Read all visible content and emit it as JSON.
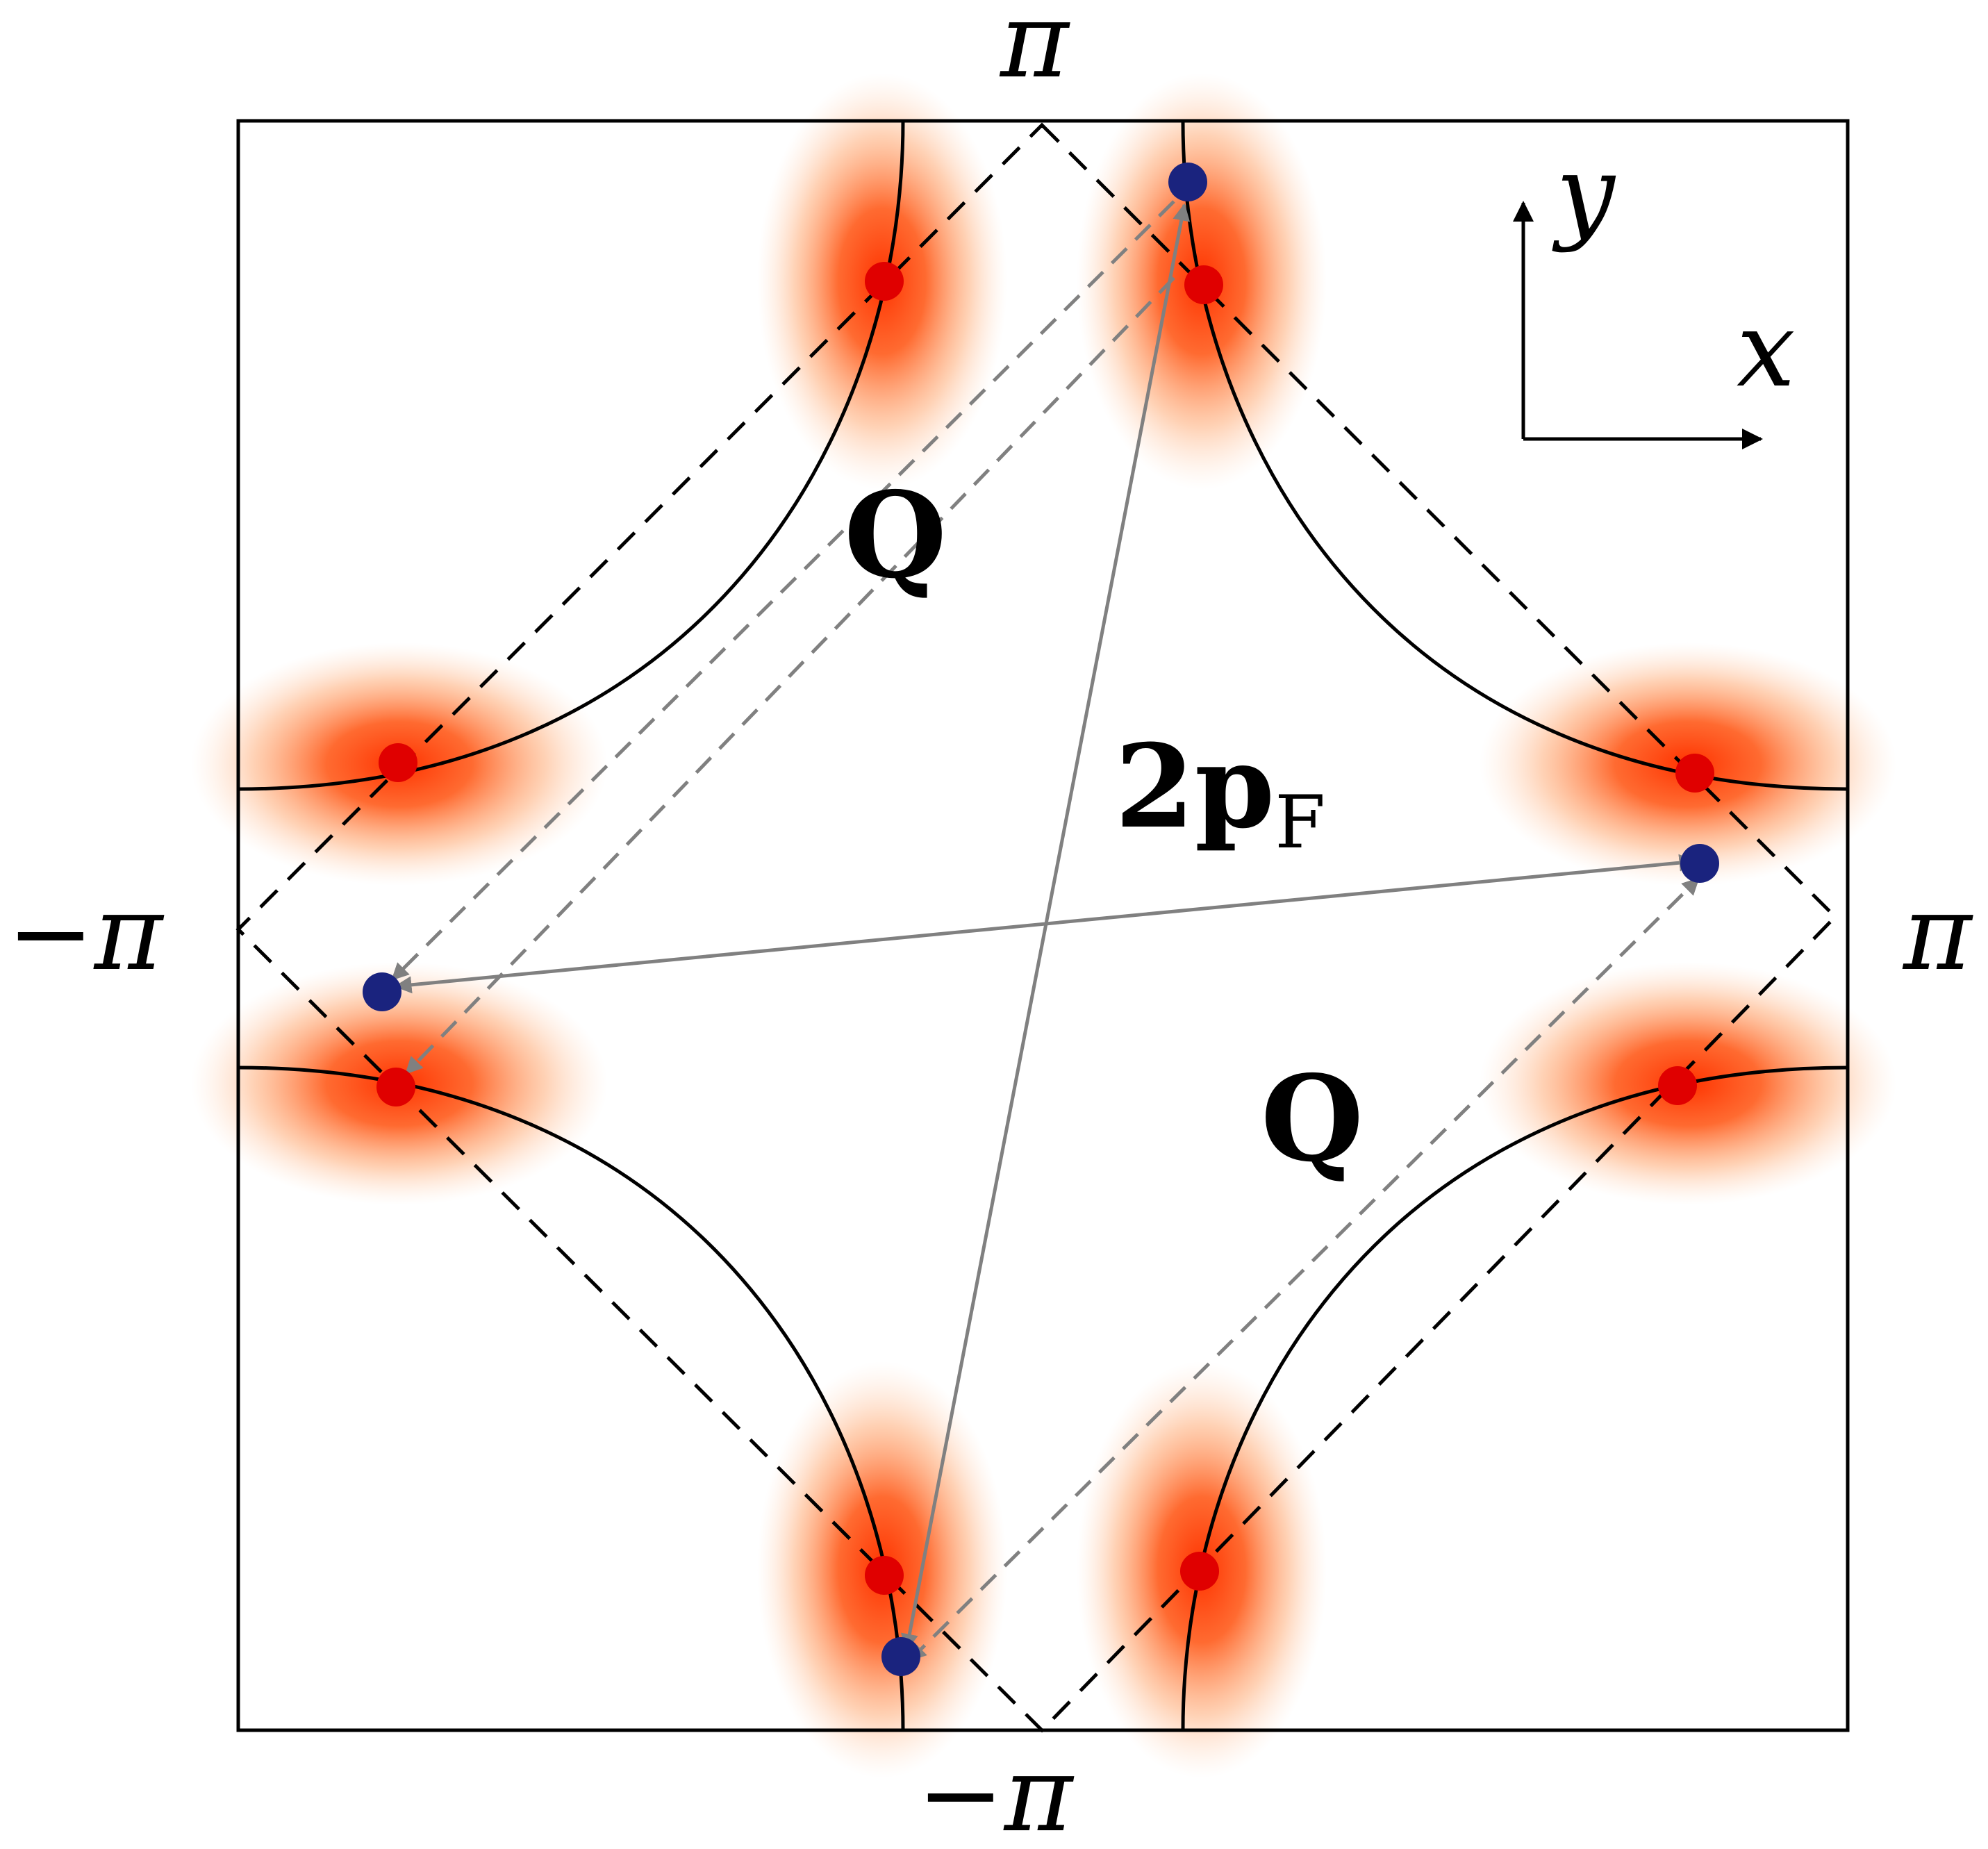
{
  "labels": {
    "top": "π",
    "bottom": "−π",
    "left": "−π",
    "right": "π",
    "axis_x": "x",
    "axis_y": "y",
    "q_upper": "Q",
    "q_lower": "Q",
    "twopf_main": "2p",
    "twopf_sub": "F"
  },
  "colors": {
    "frame": "#000000",
    "hot_spot": "#e00000",
    "blue_point": "#1a237e",
    "arrow": "#808080",
    "glow": "#ff4500"
  }
}
